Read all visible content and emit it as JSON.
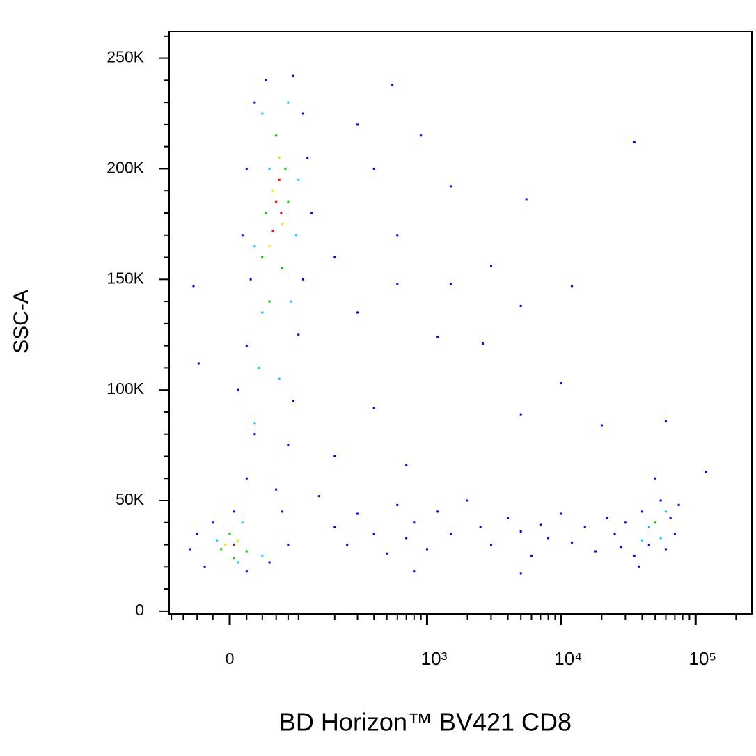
{
  "chart_data": {
    "type": "scatter",
    "x_label": "BD Horizon™ BV421 CD8",
    "y_label": "SSC-A",
    "xscale": "biexponential",
    "xlim": [
      -84,
      262144
    ],
    "ylim": [
      -1300,
      262144
    ],
    "xticks": [
      0,
      {
        "value": 1000,
        "label": "10³"
      },
      {
        "value": 10000,
        "label": "10⁴"
      },
      {
        "value": 100000,
        "label": "10⁵"
      }
    ],
    "xminorticks": [
      -80,
      -60,
      -40,
      -20,
      20,
      40,
      60,
      80,
      100,
      200,
      300,
      400,
      500,
      600,
      700,
      800,
      900,
      2000,
      3000,
      4000,
      5000,
      6000,
      7000,
      8000,
      9000,
      20000,
      30000,
      40000,
      50000,
      60000,
      70000,
      80000,
      90000,
      200000
    ],
    "yticks": [
      0,
      {
        "value": 50000,
        "label": "50K"
      },
      {
        "value": 100000,
        "label": "100K"
      },
      {
        "value": 150000,
        "label": "150K"
      },
      {
        "value": 200000,
        "label": "200K"
      },
      {
        "value": 250000,
        "label": "250K"
      }
    ],
    "yminorticks": [
      10000,
      20000,
      30000,
      40000,
      60000,
      70000,
      80000,
      90000,
      110000,
      120000,
      130000,
      140000,
      160000,
      170000,
      180000,
      190000,
      210000,
      220000,
      230000,
      240000,
      260000
    ],
    "series": [
      {
        "color": "#0000ff",
        "x": [
          30,
          45,
          90,
          110,
          20,
          120,
          15,
          130,
          25,
          110,
          20,
          100,
          10,
          90,
          30,
          80,
          20,
          60,
          5,
          70,
          -20,
          -40,
          -50,
          -30,
          20,
          50,
          80,
          -45,
          -38,
          300,
          550,
          900,
          400,
          1500,
          5500,
          600,
          200,
          3000,
          12000,
          600,
          1500,
          5000,
          300,
          1200,
          2600,
          10000,
          400,
          5000,
          20000,
          60000,
          35000,
          200,
          700,
          120000,
          150,
          200,
          250,
          300,
          400,
          500,
          600,
          700,
          800,
          1000,
          1200,
          1500,
          2000,
          2500,
          3000,
          4000,
          5000,
          6000,
          7000,
          8000,
          10000,
          12000,
          15000,
          18000,
          22000,
          25000,
          28000,
          800,
          5000,
          30000,
          35000,
          40000,
          45000,
          55000,
          60000,
          65000,
          70000,
          50000,
          38000,
          75000
        ],
        "y": [
          230000,
          240000,
          242000,
          225000,
          200000,
          205000,
          170000,
          180000,
          150000,
          150000,
          120000,
          125000,
          100000,
          95000,
          80000,
          75000,
          60000,
          55000,
          45000,
          45000,
          40000,
          35000,
          28000,
          20000,
          18000,
          22000,
          30000,
          147000,
          112000,
          220000,
          238000,
          215000,
          200000,
          192000,
          186000,
          170000,
          160000,
          156000,
          147000,
          148000,
          148000,
          138000,
          135000,
          124000,
          121000,
          103000,
          92000,
          89000,
          84000,
          86000,
          212000,
          70000,
          66000,
          63000,
          52000,
          38000,
          30000,
          44000,
          35000,
          26000,
          48000,
          33000,
          40000,
          28000,
          45000,
          35000,
          50000,
          38000,
          30000,
          42000,
          36000,
          25000,
          39000,
          33000,
          44000,
          31000,
          38000,
          27000,
          42000,
          35000,
          29000,
          18000,
          17000,
          40000,
          25000,
          45000,
          30000,
          50000,
          28000,
          42000,
          35000,
          60000,
          20000,
          48000
        ]
      },
      {
        "color": "#00c8ff",
        "x": [
          40,
          80,
          50,
          100,
          30,
          95,
          40,
          85,
          35,
          65,
          30,
          15,
          -15,
          40,
          10,
          45000,
          55000,
          60000,
          40000
        ],
        "y": [
          225000,
          230000,
          200000,
          195000,
          165000,
          170000,
          135000,
          140000,
          110000,
          105000,
          85000,
          40000,
          32000,
          25000,
          22000,
          38000,
          33000,
          45000,
          32000
        ]
      },
      {
        "color": "#00c800",
        "x": [
          60,
          75,
          45,
          80,
          40,
          70,
          50,
          0,
          -10,
          20,
          5,
          50000
        ],
        "y": [
          215000,
          200000,
          180000,
          185000,
          160000,
          155000,
          140000,
          35000,
          28000,
          27000,
          24000,
          40000
        ]
      },
      {
        "color": "#e6e600",
        "x": [
          65,
          55,
          70,
          50,
          10,
          -5
        ],
        "y": [
          205000,
          190000,
          175000,
          165000,
          32000,
          30000
        ]
      },
      {
        "color": "#ff0000",
        "x": [
          65,
          60,
          68,
          55,
          5
        ],
        "y": [
          195000,
          185000,
          180000,
          172000,
          30000
        ]
      }
    ]
  }
}
